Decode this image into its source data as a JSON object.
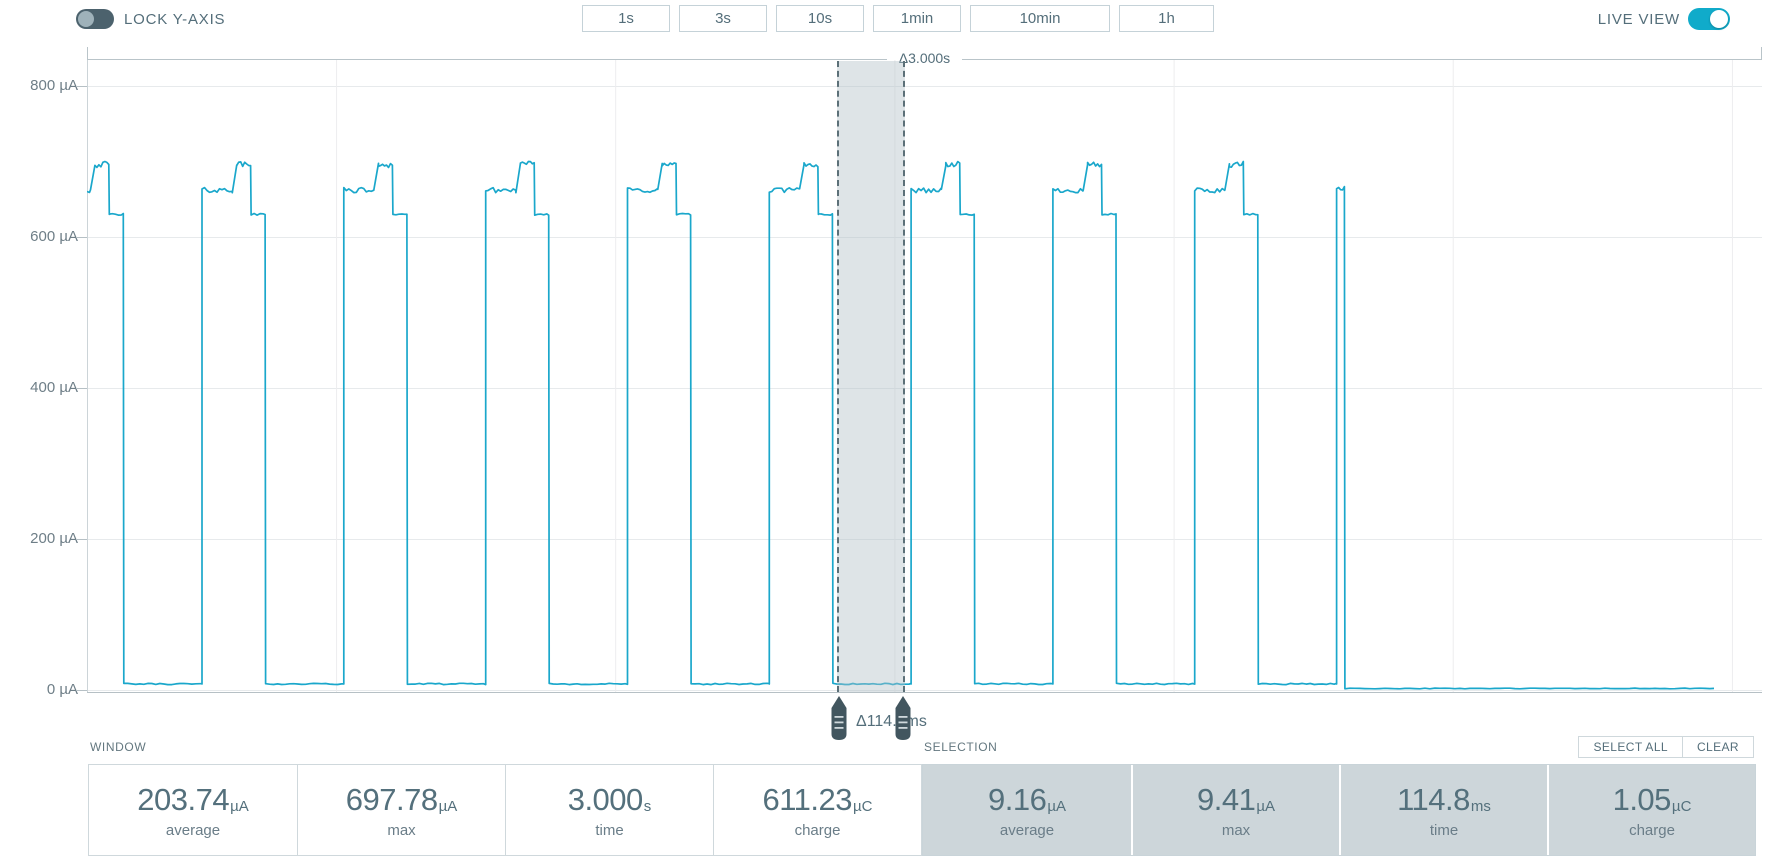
{
  "toolbar": {
    "lock_y_axis": {
      "label": "LOCK Y-AXIS",
      "on": false
    },
    "window_buttons": [
      "1s",
      "3s",
      "10s",
      "1min",
      "10min",
      "1h"
    ],
    "live_view": {
      "label": "LIVE VIEW",
      "on": true
    }
  },
  "chart_data": {
    "type": "line",
    "line_color": "#1aa7cb",
    "y_axis": {
      "unit": "µA",
      "ticks": [
        800,
        600,
        400,
        200,
        0
      ],
      "range_uA": [
        0,
        800
      ],
      "grid": true
    },
    "x_axis": {
      "window_s": 3.0,
      "ruler_label": "Δ3.000s",
      "vgrid_interval_s": 0.5,
      "vgrid_offset_s": 0.447
    },
    "waveform": {
      "description": "Periodic current pulses above a low sleep baseline; live capture ends mid-window",
      "baseline_uA": 8,
      "pulse_period_s": 0.254,
      "pulse_high_s": 0.113,
      "first_pulse_rise_s": -0.048,
      "full_pulse_count": 9,
      "pulse_profile": {
        "plateau_a_uA": 662,
        "peak_b_uA": 696,
        "plateau_c_uA": 630,
        "a_frac": 0.48,
        "ramp_frac": 0.55,
        "b_frac": 0.77
      },
      "truncated_pulse": {
        "rise_s": 2.238,
        "peak_uA": 665,
        "width_s": 0.014
      },
      "post_edge_uA": 2,
      "data_end_s": 2.914
    },
    "selection": {
      "start_s": 1.347,
      "end_s": 1.462,
      "label": "Δ114.8ms"
    }
  },
  "window_stats": {
    "title": "WINDOW",
    "items": [
      {
        "value": "203.74",
        "unit": "µA",
        "label": "average"
      },
      {
        "value": "697.78",
        "unit": "µA",
        "label": "max"
      },
      {
        "value": "3.000",
        "unit": "s",
        "label": "time"
      },
      {
        "value": "611.23",
        "unit": "µC",
        "label": "charge"
      }
    ]
  },
  "selection_stats": {
    "title": "SELECTION",
    "buttons": [
      "SELECT ALL",
      "CLEAR"
    ],
    "items": [
      {
        "value": "9.16",
        "unit": "µA",
        "label": "average"
      },
      {
        "value": "9.41",
        "unit": "µA",
        "label": "max"
      },
      {
        "value": "114.8",
        "unit": "ms",
        "label": "time"
      },
      {
        "value": "1.05",
        "unit": "µC",
        "label": "charge"
      }
    ]
  },
  "colors": {
    "accent_teal": "#1aa7cb",
    "slate_text": "#546e7a",
    "selection_fill": "#cfd7db",
    "handle": "#42565f",
    "grid": "#e7eaec",
    "border_light": "#cfd8dc"
  }
}
